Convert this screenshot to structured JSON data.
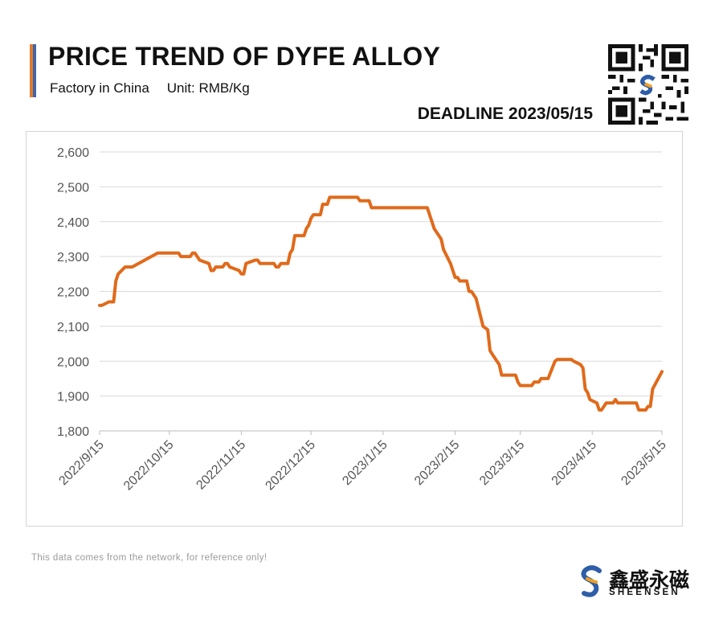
{
  "header": {
    "title": "PRICE TREND OF DYFE ALLOY",
    "subtitle_location": "Factory in China",
    "subtitle_unit": "Unit: RMB/Kg",
    "deadline": "DEADLINE 2023/05/15",
    "accent_colors": [
      "#e07a2c",
      "#3f66a8"
    ]
  },
  "footnote": "This data comes from the network, for reference only!",
  "logo": {
    "cn": "鑫盛永磁",
    "en": "SHEENSEN",
    "mark_colors": [
      "#2f5ea8",
      "#f0a020"
    ]
  },
  "chart_data": {
    "type": "line",
    "title": "PRICE TREND OF DYFE ALLOY",
    "xlabel": "",
    "ylabel": "",
    "line_color": "#e06a1b",
    "ylim": [
      1800,
      2600
    ],
    "yticks": [
      1800,
      1900,
      2000,
      2100,
      2200,
      2300,
      2400,
      2500,
      2600
    ],
    "ytick_labels": [
      "1,800",
      "1,900",
      "2,000",
      "2,100",
      "2,200",
      "2,300",
      "2,400",
      "2,500",
      "2,600"
    ],
    "xlim": [
      "2022-09-15",
      "2023-05-15"
    ],
    "xticks": [
      "2022-09-15",
      "2022-10-15",
      "2022-11-15",
      "2022-12-15",
      "2023-01-15",
      "2023-02-15",
      "2023-03-15",
      "2023-04-15",
      "2023-05-15"
    ],
    "xtick_labels": [
      "2022/9/15",
      "2022/10/15",
      "2022/11/15",
      "2022/12/15",
      "2023/1/15",
      "2023/2/15",
      "2023/3/15",
      "2023/4/15",
      "2023/5/15"
    ],
    "grid": true,
    "legend": "none",
    "series": [
      {
        "x": [
          "2022-09-15",
          "2022-09-16",
          "2022-09-19",
          "2022-09-20",
          "2022-09-21",
          "2022-09-22",
          "2022-09-23",
          "2022-09-26",
          "2022-09-27",
          "2022-09-29",
          "2022-10-10",
          "2022-10-19",
          "2022-10-20",
          "2022-10-24",
          "2022-10-25",
          "2022-10-26",
          "2022-10-27",
          "2022-10-28",
          "2022-11-01",
          "2022-11-02",
          "2022-11-03",
          "2022-11-04",
          "2022-11-07",
          "2022-11-08",
          "2022-11-09",
          "2022-11-10",
          "2022-11-14",
          "2022-11-15",
          "2022-11-16",
          "2022-11-17",
          "2022-11-21",
          "2022-11-22",
          "2022-11-23",
          "2022-11-28",
          "2022-11-29",
          "2022-11-30",
          "2022-12-01",
          "2022-12-02",
          "2022-12-05",
          "2022-12-06",
          "2022-12-07",
          "2022-12-08",
          "2022-12-09",
          "2022-12-12",
          "2022-12-13",
          "2022-12-14",
          "2022-12-15",
          "2022-12-16",
          "2022-12-19",
          "2022-12-20",
          "2022-12-22",
          "2022-12-23",
          "2023-01-04",
          "2023-01-05",
          "2023-01-09",
          "2023-01-10",
          "2023-02-03",
          "2023-02-06",
          "2023-02-08",
          "2023-02-09",
          "2023-02-10",
          "2023-02-13",
          "2023-02-14",
          "2023-02-15",
          "2023-02-16",
          "2023-02-17",
          "2023-02-20",
          "2023-02-21",
          "2023-02-22",
          "2023-02-23",
          "2023-02-24",
          "2023-02-27",
          "2023-03-01",
          "2023-03-02",
          "2023-03-03",
          "2023-03-06",
          "2023-03-07",
          "2023-03-08",
          "2023-03-09",
          "2023-03-10",
          "2023-03-13",
          "2023-03-14",
          "2023-03-15",
          "2023-03-16",
          "2023-03-20",
          "2023-03-21",
          "2023-03-23",
          "2023-03-24",
          "2023-03-27",
          "2023-03-30",
          "2023-03-31",
          "2023-04-06",
          "2023-04-07",
          "2023-04-10",
          "2023-04-11",
          "2023-04-12",
          "2023-04-13",
          "2023-04-14",
          "2023-04-17",
          "2023-04-18",
          "2023-04-19",
          "2023-04-20",
          "2023-04-21",
          "2023-04-24",
          "2023-04-25",
          "2023-04-26",
          "2023-04-27",
          "2023-05-04",
          "2023-05-05",
          "2023-05-08",
          "2023-05-09",
          "2023-05-10",
          "2023-05-11",
          "2023-05-15"
        ],
        "y": [
          2160,
          2160,
          2170,
          2170,
          2170,
          2230,
          2250,
          2270,
          2270,
          2270,
          2310,
          2310,
          2300,
          2300,
          2310,
          2310,
          2300,
          2290,
          2280,
          2260,
          2260,
          2270,
          2270,
          2280,
          2280,
          2270,
          2260,
          2250,
          2250,
          2280,
          2290,
          2290,
          2280,
          2280,
          2280,
          2270,
          2270,
          2280,
          2280,
          2310,
          2320,
          2360,
          2360,
          2360,
          2380,
          2390,
          2410,
          2420,
          2420,
          2450,
          2450,
          2470,
          2470,
          2460,
          2460,
          2440,
          2440,
          2380,
          2360,
          2350,
          2320,
          2280,
          2260,
          2240,
          2240,
          2230,
          2230,
          2200,
          2200,
          2190,
          2180,
          2100,
          2090,
          2030,
          2020,
          1990,
          1960,
          1960,
          1960,
          1960,
          1960,
          1940,
          1930,
          1930,
          1930,
          1940,
          1940,
          1950,
          1950,
          2000,
          2005,
          2005,
          2000,
          1990,
          1980,
          1920,
          1910,
          1890,
          1880,
          1860,
          1860,
          1870,
          1880,
          1880,
          1890,
          1880,
          1880,
          1880,
          1860,
          1860,
          1870,
          1870,
          1920,
          1970
        ]
      }
    ]
  }
}
